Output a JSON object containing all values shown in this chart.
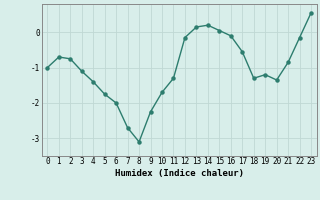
{
  "x": [
    0,
    1,
    2,
    3,
    4,
    5,
    6,
    7,
    8,
    9,
    10,
    11,
    12,
    13,
    14,
    15,
    16,
    17,
    18,
    19,
    20,
    21,
    22,
    23
  ],
  "y": [
    -1.0,
    -0.7,
    -0.75,
    -1.1,
    -1.4,
    -1.75,
    -2.0,
    -2.7,
    -3.1,
    -2.25,
    -1.7,
    -1.3,
    -0.15,
    0.15,
    0.2,
    0.05,
    -0.1,
    -0.55,
    -1.3,
    -1.2,
    -1.35,
    -0.85,
    -0.15,
    0.55
  ],
  "line_color": "#2d7d6e",
  "marker": "o",
  "marker_size": 2.2,
  "line_width": 1.0,
  "xlabel": "Humidex (Indice chaleur)",
  "xlim": [
    -0.5,
    23.5
  ],
  "ylim": [
    -3.5,
    0.8
  ],
  "yticks": [
    -3,
    -2,
    -1,
    0
  ],
  "xticks": [
    0,
    1,
    2,
    3,
    4,
    5,
    6,
    7,
    8,
    9,
    10,
    11,
    12,
    13,
    14,
    15,
    16,
    17,
    18,
    19,
    20,
    21,
    22,
    23
  ],
  "grid_color": "#c0d8d4",
  "bg_color": "#d8eeea",
  "label_fontsize": 6.5,
  "tick_fontsize": 5.5
}
